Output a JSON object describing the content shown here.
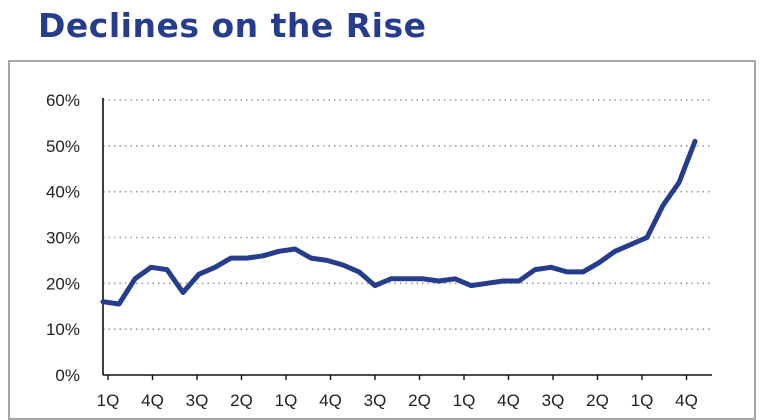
{
  "chart_data": {
    "type": "line",
    "title": "Declines on the Rise",
    "xlabel": "",
    "ylabel": "",
    "ylim": [
      0,
      60
    ],
    "yticks": [
      "0%",
      "10%",
      "20%",
      "30%",
      "40%",
      "50%",
      "60%"
    ],
    "grid": true,
    "line_color": "#253d8c",
    "title_color": "#253d8c",
    "x_tick_labels": [
      "1Q",
      "4Q",
      "3Q",
      "2Q",
      "1Q",
      "4Q",
      "3Q",
      "2Q",
      "1Q",
      "4Q",
      "3Q",
      "2Q",
      "1Q",
      "4Q"
    ],
    "series": [
      {
        "values": [
          16,
          15.5,
          21,
          23.5,
          23,
          18,
          22,
          23.5,
          25.5,
          25.5,
          26,
          27,
          27.5,
          25.5,
          25,
          24,
          22.5,
          19.5,
          21,
          21,
          21,
          20.5,
          21,
          19.5,
          20,
          20.5,
          20.5,
          23,
          23.5,
          22.5,
          22.5,
          24.5,
          27,
          28.5,
          30,
          37,
          42,
          51
        ]
      }
    ]
  }
}
